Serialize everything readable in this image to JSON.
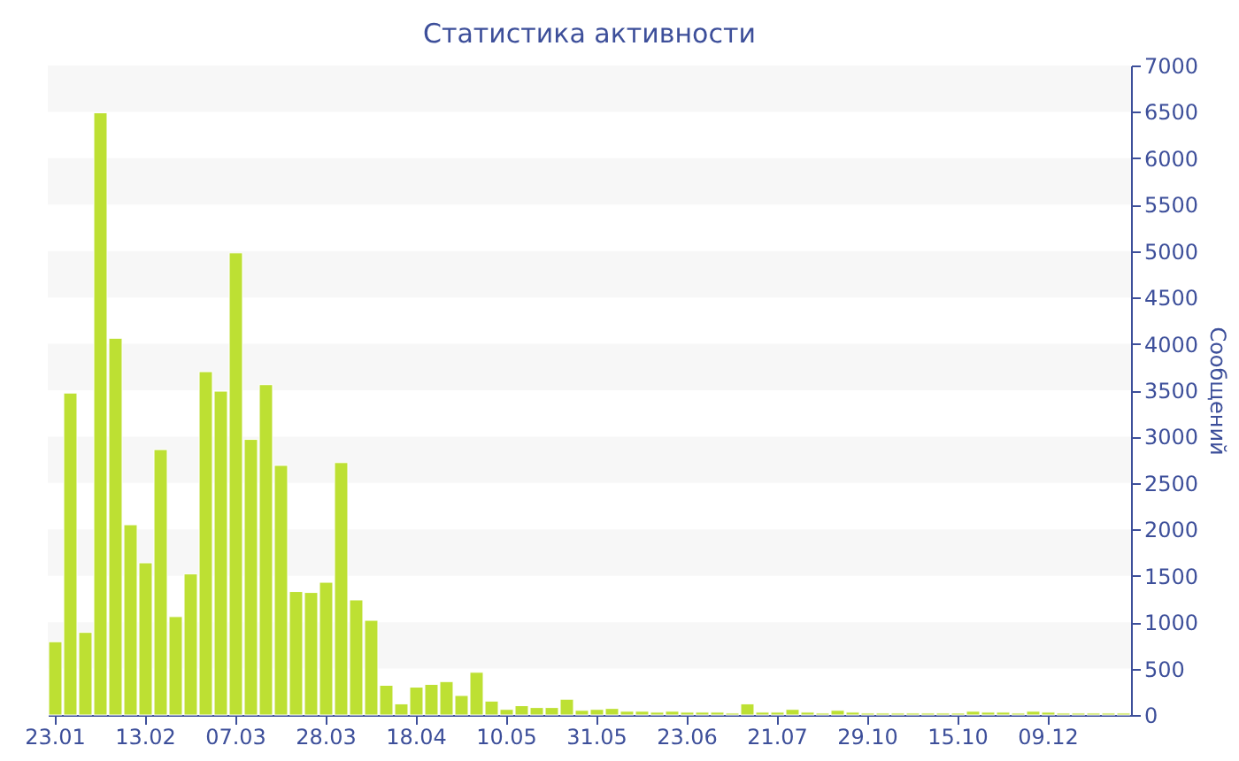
{
  "chart_data": {
    "type": "bar",
    "title": "Статистика активности",
    "ylabel": "Сообщений",
    "categories": [
      "23.01",
      null,
      null,
      null,
      null,
      null,
      "13.02",
      null,
      null,
      null,
      null,
      null,
      "07.03",
      null,
      null,
      null,
      null,
      null,
      "28.03",
      null,
      null,
      null,
      null,
      null,
      "18.04",
      null,
      null,
      null,
      null,
      null,
      "10.05",
      null,
      null,
      null,
      null,
      null,
      "31.05",
      null,
      null,
      null,
      null,
      null,
      "23.06",
      null,
      null,
      null,
      null,
      null,
      "21.07",
      null,
      null,
      null,
      null,
      null,
      "29.10",
      null,
      null,
      null,
      null,
      null,
      "15.10",
      null,
      null,
      null,
      null,
      null,
      "09.12",
      null,
      null,
      null,
      null,
      null
    ],
    "values": [
      790,
      3470,
      890,
      6490,
      4060,
      2050,
      1640,
      2860,
      1060,
      1520,
      3700,
      3490,
      4980,
      2970,
      3560,
      2690,
      1330,
      1320,
      1430,
      2720,
      1240,
      1020,
      320,
      120,
      300,
      330,
      360,
      210,
      460,
      150,
      60,
      100,
      80,
      80,
      170,
      50,
      60,
      70,
      40,
      40,
      30,
      40,
      30,
      30,
      30,
      20,
      120,
      30,
      30,
      60,
      30,
      20,
      50,
      30,
      20,
      20,
      20,
      20,
      20,
      20,
      20,
      40,
      30,
      30,
      20,
      40,
      30,
      20,
      20,
      20,
      20,
      20
    ],
    "color": "#bde033",
    "ylim": [
      0,
      7000
    ],
    "yticks": [
      0,
      500,
      1000,
      1500,
      2000,
      2500,
      3000,
      3500,
      4000,
      4500,
      5000,
      5500,
      6000,
      6500,
      7000
    ],
    "bands": [
      {
        "axis": "y",
        "from": 500,
        "to": 1000,
        "color": "#f7f7f7"
      },
      {
        "axis": "y",
        "from": 1500,
        "to": 2000,
        "color": "#f7f7f7"
      },
      {
        "axis": "y",
        "from": 2500,
        "to": 3000,
        "color": "#f7f7f7"
      },
      {
        "axis": "y",
        "from": 3500,
        "to": 4000,
        "color": "#f7f7f7"
      },
      {
        "axis": "y",
        "from": 4500,
        "to": 5000,
        "color": "#f7f7f7"
      },
      {
        "axis": "y",
        "from": 5500,
        "to": 6000,
        "color": "#f7f7f7"
      },
      {
        "axis": "y",
        "from": 6500,
        "to": 7000,
        "color": "#f7f7f7"
      }
    ],
    "grid": false
  }
}
